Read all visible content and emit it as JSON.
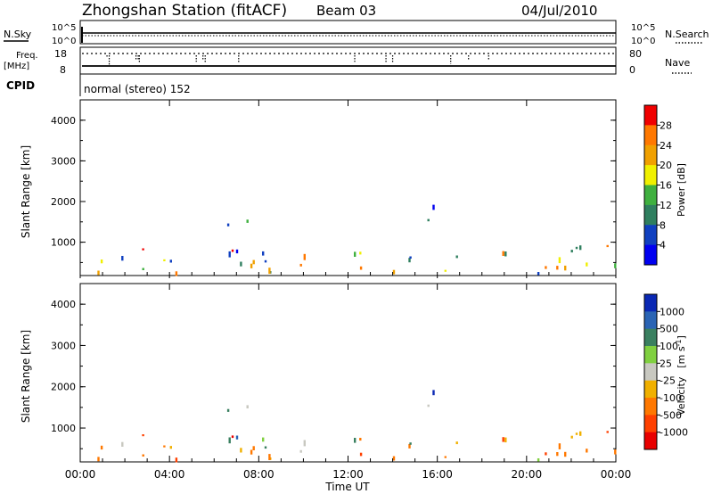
{
  "header": {
    "title": "Zhongshan Station (fitACF)",
    "beam": "Beam 03",
    "date": "04/Jul/2010",
    "nsky_label": "N.Sky",
    "nsearch_label": "N.Search",
    "freq_label_1": "Freq.",
    "freq_label_2": "[MHz]",
    "nave_label": "Nave",
    "cpid_label": "CPID",
    "cpid_value": "normal (stereo) 152",
    "nsky_ticks": [
      "10^5",
      "10^0"
    ],
    "nsearch_ticks": [
      "10^5",
      "10^0"
    ],
    "freq_ticks": [
      "18",
      "8"
    ],
    "nave_ticks": [
      "80",
      "0"
    ]
  },
  "chart_data": [
    {
      "type": "heatmap",
      "panel": "power",
      "ylabel": "Slant Range [km]",
      "ylim": [
        180,
        4500
      ],
      "yticks": [
        "1000",
        "2000",
        "3000",
        "4000"
      ],
      "xlim": [
        "00:00",
        "24:00"
      ],
      "colorbar": {
        "label": "Power [dB]",
        "ticks": [
          "4",
          "8",
          "12",
          "16",
          "20",
          "24",
          "28"
        ],
        "colors": [
          "#0000f0",
          "#1040c0",
          "#2f7f5f",
          "#3fb03f",
          "#f0f000",
          "#f0a000",
          "#ff7800",
          "#f00000"
        ]
      }
    },
    {
      "type": "heatmap",
      "panel": "velocity",
      "ylabel": "Slant Range [km]",
      "ylim": [
        180,
        4500
      ],
      "yticks": [
        "1000",
        "2000",
        "3000",
        "4000"
      ],
      "xlim": [
        "00:00",
        "24:00"
      ],
      "colorbar": {
        "label": "Velocity",
        "unit": "[m s",
        "unit_sup": "-1",
        "unit_end": "]",
        "ticks": [
          "1000",
          "500",
          "100",
          "25",
          "-25",
          "-100",
          "-500",
          "-1000"
        ],
        "colors": [
          "#0a28b4",
          "#2a64b4",
          "#3a8060",
          "#80d040",
          "#c8c8c0",
          "#f0b000",
          "#ff7800",
          "#ff4000",
          "#e80000"
        ]
      }
    }
  ],
  "xaxis": {
    "label": "Time UT",
    "ticks": [
      "00:00",
      "04:00",
      "08:00",
      "12:00",
      "16:00",
      "20:00",
      "00:00"
    ]
  }
}
